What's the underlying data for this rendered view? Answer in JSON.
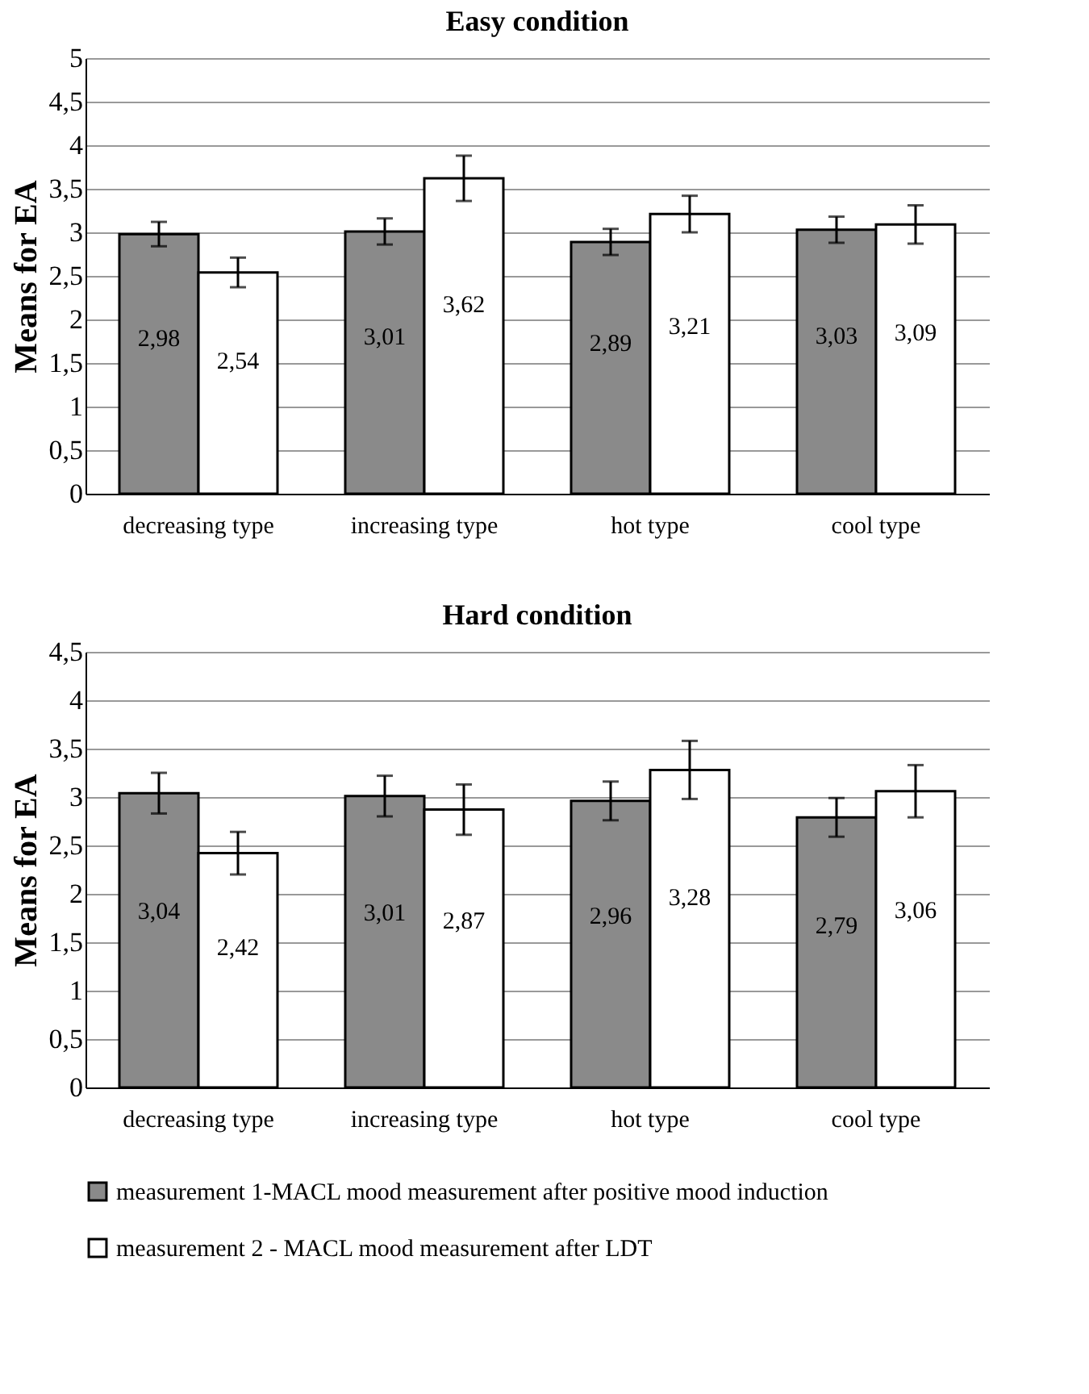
{
  "chart_data": [
    {
      "type": "bar",
      "title": "Easy condition",
      "ylabel": "Means for EA",
      "categories": [
        "decreasing type",
        "increasing type",
        "hot type",
        "cool type"
      ],
      "series": [
        {
          "color": "#8a8a8a",
          "values": [
            2.98,
            3.01,
            2.89,
            3.03
          ],
          "errors": [
            0.14,
            0.15,
            0.15,
            0.15
          ],
          "value_labels": [
            "2,98",
            "3,01",
            "2,89",
            "3,03"
          ]
        },
        {
          "color": "#ffffff",
          "values": [
            2.54,
            3.62,
            3.21,
            3.09
          ],
          "errors": [
            0.17,
            0.26,
            0.21,
            0.22
          ],
          "value_labels": [
            "2,54",
            "3,62",
            "3,21",
            "3,09"
          ]
        }
      ],
      "ylim": [
        0,
        5
      ],
      "yticks": [
        0,
        {
          "value": 0.5,
          "label": "0,5"
        },
        1,
        {
          "value": 1.5,
          "label": "1,5"
        },
        2,
        {
          "value": 2.5,
          "label": "2,5"
        },
        3,
        {
          "value": 3.5,
          "label": "3,5"
        },
        4,
        {
          "value": 4.5,
          "label": "4,5"
        },
        5
      ],
      "grid": "y"
    },
    {
      "type": "bar",
      "title": "Hard condition",
      "ylabel": "Means for EA",
      "categories": [
        "decreasing type",
        "increasing type",
        "hot type",
        "cool type"
      ],
      "series": [
        {
          "name": "measurement 1-MACL mood measurement after positive mood induction",
          "color": "#8a8a8a",
          "values": [
            3.04,
            3.01,
            2.96,
            2.79
          ],
          "errors": [
            0.21,
            0.21,
            0.2,
            0.2
          ],
          "value_labels": [
            "3,04",
            "3,01",
            "2,96",
            "2,79"
          ]
        },
        {
          "name": "measurement 2 - MACL mood measurement after LDT",
          "color": "#ffffff",
          "values": [
            2.42,
            2.87,
            3.28,
            3.06
          ],
          "errors": [
            0.22,
            0.26,
            0.3,
            0.27
          ],
          "value_labels": [
            "2,42",
            "2,87",
            "3,28",
            "3,06"
          ]
        }
      ],
      "ylim": [
        0,
        4.5
      ],
      "yticks": [
        0,
        {
          "value": 0.5,
          "label": "0,5"
        },
        1,
        {
          "value": 1.5,
          "label": "1,5"
        },
        2,
        {
          "value": 2.5,
          "label": "2,5"
        },
        3,
        {
          "value": 3.5,
          "label": "3,5"
        },
        4,
        {
          "value": 4.5,
          "label": "4,5"
        }
      ],
      "grid": "y",
      "legend": "bottom"
    }
  ]
}
